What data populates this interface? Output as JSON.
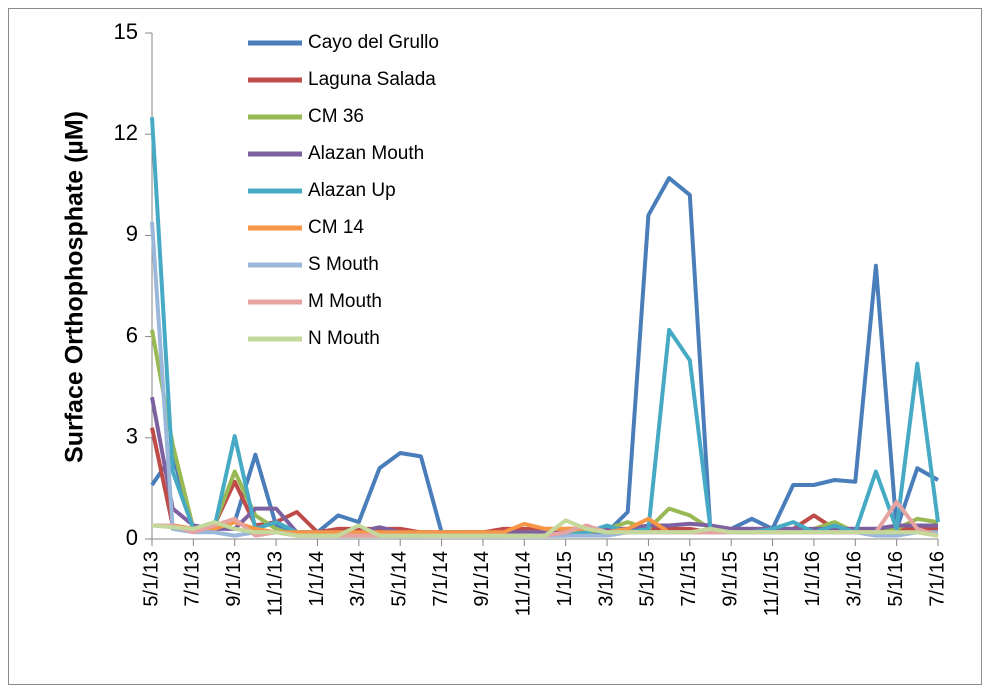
{
  "chart_data": {
    "type": "line",
    "y_label": "Surface Orthophosphate (µM)",
    "categories": [
      "5/1/13",
      null,
      "7/1/13",
      null,
      "9/1/13",
      null,
      "11/1/13",
      null,
      "1/1/14",
      null,
      "3/1/14",
      null,
      "5/1/14",
      null,
      "7/1/14",
      null,
      "9/1/14",
      null,
      "11/1/14",
      null,
      "1/1/15",
      null,
      "3/1/15",
      null,
      "5/1/15",
      null,
      "7/1/15",
      null,
      "9/1/15",
      null,
      "11/1/15",
      null,
      "1/1/16",
      null,
      "3/1/16",
      null,
      "5/1/16",
      null,
      "7/1/16"
    ],
    "ylim": [
      0,
      15
    ],
    "yticks": [
      0,
      3,
      6,
      9,
      12,
      15
    ],
    "legend": "upper-left",
    "series": [
      {
        "name": "Cayo del Grullo",
        "color": "#4a7ebb",
        "values": [
          1.6,
          2.5,
          0.3,
          0.3,
          0.5,
          2.5,
          0.4,
          0.2,
          0.2,
          0.7,
          0.5,
          2.1,
          2.55,
          2.45,
          0.2,
          0.2,
          0.15,
          0.2,
          0.2,
          0.2,
          0.2,
          0.2,
          0.2,
          0.8,
          9.6,
          10.7,
          10.2,
          0.2,
          0.3,
          0.6,
          0.3,
          1.6,
          1.6,
          1.75,
          1.7,
          8.1,
          0.3,
          2.1,
          1.75
        ]
      },
      {
        "name": "Laguna Salada",
        "color": "#be4b48",
        "values": [
          3.3,
          0.4,
          0.3,
          0.4,
          1.7,
          0.4,
          0.5,
          0.8,
          0.2,
          0.3,
          0.3,
          0.3,
          0.3,
          0.2,
          0.2,
          0.2,
          0.2,
          0.3,
          0.3,
          0.3,
          0.3,
          0.3,
          0.3,
          0.3,
          0.3,
          0.3,
          0.3,
          0.2,
          0.3,
          0.3,
          0.3,
          0.3,
          0.7,
          0.3,
          0.3,
          0.3,
          0.3,
          0.3,
          0.3
        ]
      },
      {
        "name": "CM 36",
        "color": "#98b954",
        "values": [
          6.2,
          2.8,
          0.3,
          0.4,
          2.0,
          0.7,
          0.3,
          0.1,
          0.1,
          0.1,
          0.1,
          0.1,
          0.1,
          0.1,
          0.1,
          0.1,
          0.1,
          0.1,
          0.2,
          0.2,
          0.2,
          0.2,
          0.3,
          0.5,
          0.3,
          0.9,
          0.7,
          0.3,
          0.2,
          0.2,
          0.2,
          0.2,
          0.3,
          0.5,
          0.2,
          0.2,
          0.3,
          0.6,
          0.5
        ]
      },
      {
        "name": "Alazan Mouth",
        "color": "#7d60a0",
        "values": [
          4.2,
          0.9,
          0.4,
          0.3,
          0.3,
          0.9,
          0.9,
          0.2,
          0.2,
          0.2,
          0.2,
          0.35,
          0.2,
          0.2,
          0.2,
          0.2,
          0.2,
          0.2,
          0.2,
          0.2,
          0.3,
          0.3,
          0.3,
          0.3,
          0.4,
          0.4,
          0.45,
          0.4,
          0.3,
          0.3,
          0.3,
          0.3,
          0.3,
          0.3,
          0.3,
          0.3,
          0.4,
          0.4,
          0.4
        ]
      },
      {
        "name": "Alazan Up",
        "color": "#46aac5",
        "values": [
          12.5,
          2.0,
          0.3,
          0.3,
          3.05,
          0.3,
          0.5,
          0.2,
          0.2,
          0.1,
          0.1,
          0.1,
          0.1,
          0.1,
          0.2,
          0.2,
          0.1,
          0.1,
          0.1,
          0.1,
          0.1,
          0.2,
          0.4,
          0.2,
          0.3,
          6.2,
          5.3,
          0.3,
          0.2,
          0.2,
          0.3,
          0.5,
          0.2,
          0.4,
          0.2,
          2.0,
          0.3,
          5.2,
          0.5
        ]
      },
      {
        "name": "CM 14",
        "color": "#f79646",
        "values": [
          0.4,
          0.4,
          0.3,
          0.3,
          0.5,
          0.3,
          0.2,
          0.2,
          0.2,
          0.2,
          0.2,
          0.2,
          0.2,
          0.2,
          0.2,
          0.2,
          0.2,
          0.2,
          0.45,
          0.3,
          0.3,
          0.3,
          0.2,
          0.3,
          0.6,
          0.2,
          0.2,
          0.2,
          0.2,
          0.2,
          0.2,
          0.2,
          0.2,
          0.2,
          0.2,
          0.2,
          0.2,
          0.2,
          0.1
        ]
      },
      {
        "name": "S Mouth",
        "color": "#9bb7d9",
        "values": [
          9.4,
          0.3,
          0.2,
          0.2,
          0.1,
          0.2,
          0.2,
          0.1,
          0.1,
          0.1,
          0.1,
          0.1,
          0.1,
          0.1,
          0.1,
          0.1,
          0.1,
          0.1,
          0.1,
          0.1,
          0.1,
          0.1,
          0.1,
          0.2,
          0.2,
          0.2,
          0.2,
          0.2,
          0.2,
          0.2,
          0.2,
          0.2,
          0.2,
          0.2,
          0.2,
          0.1,
          0.1,
          0.2,
          0.2
        ]
      },
      {
        "name": "M Mouth",
        "color": "#e6a3a2",
        "values": [
          0.4,
          0.4,
          0.2,
          0.4,
          0.6,
          0.1,
          0.2,
          0.1,
          0.1,
          0.1,
          0.1,
          0.1,
          0.1,
          0.1,
          0.1,
          0.1,
          0.1,
          0.1,
          0.1,
          0.1,
          0.2,
          0.4,
          0.2,
          0.2,
          0.2,
          0.2,
          0.2,
          0.2,
          0.2,
          0.2,
          0.2,
          0.2,
          0.2,
          0.2,
          0.2,
          0.2,
          1.1,
          0.3,
          0.1
        ]
      },
      {
        "name": "N Mouth",
        "color": "#c4d89b",
        "values": [
          0.4,
          0.35,
          0.3,
          0.5,
          0.3,
          0.2,
          0.2,
          0.1,
          0.1,
          0.1,
          0.4,
          0.1,
          0.1,
          0.1,
          0.1,
          0.1,
          0.1,
          0.1,
          0.1,
          0.1,
          0.55,
          0.3,
          0.2,
          0.2,
          0.2,
          0.2,
          0.2,
          0.3,
          0.2,
          0.2,
          0.2,
          0.2,
          0.2,
          0.2,
          0.2,
          0.2,
          0.2,
          0.2,
          0.1
        ]
      }
    ]
  }
}
